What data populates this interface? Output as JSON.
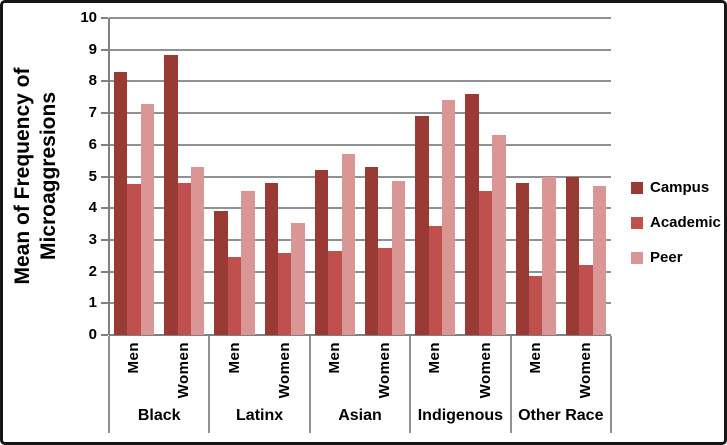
{
  "chart_data": {
    "type": "bar",
    "title": "",
    "ylabel": "Mean of Frequency of Microaggresions",
    "ylabel_lines": [
      "Mean of Frequency of",
      "Microaggresions"
    ],
    "xlabel": "",
    "ylim": [
      0,
      10
    ],
    "y_ticks": [
      0,
      1,
      2,
      3,
      4,
      5,
      6,
      7,
      8,
      9,
      10
    ],
    "grid": true,
    "legend_position": "right",
    "groups": [
      "Black",
      "Latinx",
      "Asian",
      "Indigenous",
      "Other Race"
    ],
    "subgroups": [
      "Men",
      "Women"
    ],
    "category_order_note": "values are ordered Black-Men, Black-Women, Latinx-Men, Latinx-Women, Asian-Men, Asian-Women, Indigenous-Men, Indigenous-Women, OtherRace-Men, OtherRace-Women",
    "series": [
      {
        "name": "Campus",
        "color": "#993B34",
        "values": [
          8.3,
          8.85,
          3.9,
          4.8,
          5.2,
          5.3,
          6.9,
          7.6,
          4.8,
          5.0
        ]
      },
      {
        "name": "Academic",
        "color": "#C0504D",
        "values": [
          4.75,
          4.8,
          2.45,
          2.6,
          2.65,
          2.75,
          3.45,
          4.55,
          1.85,
          2.2
        ]
      },
      {
        "name": "Peer",
        "color": "#D99694",
        "values": [
          7.3,
          5.3,
          4.55,
          3.55,
          5.7,
          4.85,
          7.4,
          6.3,
          5.0,
          4.7
        ]
      }
    ],
    "colors": {
      "gridline": "#8f9193",
      "axis": "#7e8082",
      "text": "#000000",
      "border": "#161616"
    }
  }
}
